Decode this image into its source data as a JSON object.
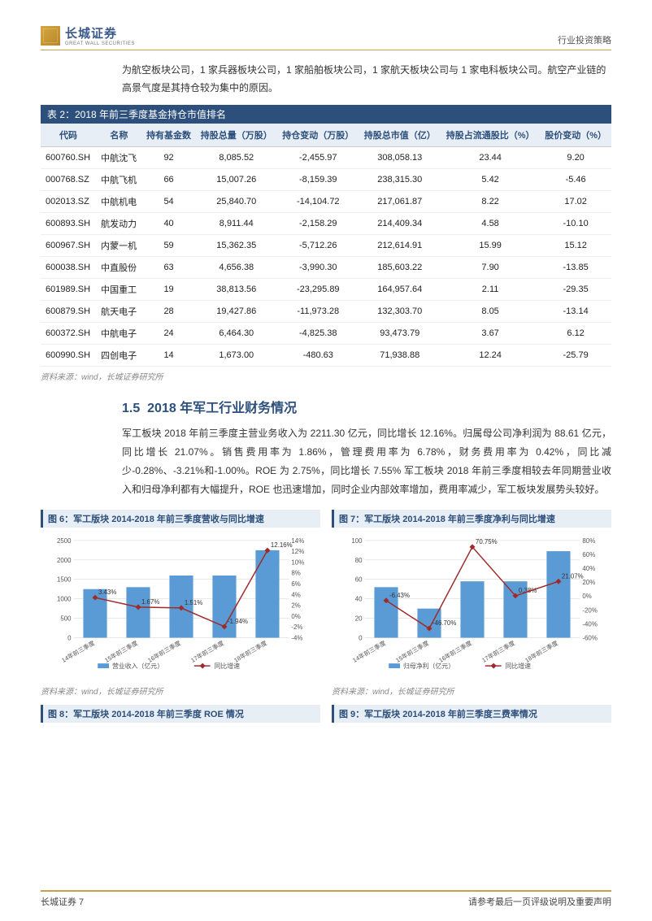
{
  "header": {
    "brand_cn": "长城证券",
    "brand_en": "GREAT WALL SECURITIES",
    "right": "行业投资策略"
  },
  "intro": "为航空板块公司，1 家兵器板块公司，1 家船舶板块公司，1 家航天板块公司与 1 家电科板块公司。航空产业链的高景气度是其持仓较为集中的原因。",
  "table": {
    "title": "表 2：2018 年前三季度基金持仓市值排名",
    "columns": [
      "代码",
      "名称",
      "持有基金数",
      "持股总量（万股）",
      "持仓变动（万股）",
      "持股总市值（亿）",
      "持股占流通股比（%）",
      "股价变动（%）"
    ],
    "rows": [
      [
        "600760.SH",
        "中航沈飞",
        "92",
        "8,085.52",
        "-2,455.97",
        "308,058.13",
        "23.44",
        "9.20"
      ],
      [
        "000768.SZ",
        "中航飞机",
        "66",
        "15,007.26",
        "-8,159.39",
        "238,315.30",
        "5.42",
        "-5.46"
      ],
      [
        "002013.SZ",
        "中航机电",
        "54",
        "25,840.70",
        "-14,104.72",
        "217,061.87",
        "8.22",
        "17.02"
      ],
      [
        "600893.SH",
        "航发动力",
        "40",
        "8,911.44",
        "-2,158.29",
        "214,409.34",
        "4.58",
        "-10.10"
      ],
      [
        "600967.SH",
        "内蒙一机",
        "59",
        "15,362.35",
        "-5,712.26",
        "212,614.91",
        "15.99",
        "15.12"
      ],
      [
        "600038.SH",
        "中直股份",
        "63",
        "4,656.38",
        "-3,990.30",
        "185,603.22",
        "7.90",
        "-13.85"
      ],
      [
        "601989.SH",
        "中国重工",
        "19",
        "38,813.56",
        "-23,295.89",
        "164,957.64",
        "2.11",
        "-29.35"
      ],
      [
        "600879.SH",
        "航天电子",
        "28",
        "19,427.86",
        "-11,973.28",
        "132,303.70",
        "8.05",
        "-13.14"
      ],
      [
        "600372.SH",
        "中航电子",
        "24",
        "6,464.30",
        "-4,825.38",
        "93,473.79",
        "3.67",
        "6.12"
      ],
      [
        "600990.SH",
        "四创电子",
        "14",
        "1,673.00",
        "-480.63",
        "71,938.88",
        "12.24",
        "-25.79"
      ]
    ],
    "source": "资料来源：wind，长城证券研究所"
  },
  "section": {
    "num": "1.5",
    "title": "2018 年军工行业财务情况",
    "para": "军工板块 2018 年前三季度主营业务收入为 2211.30 亿元，同比增长 12.16%。归属母公司净利润为 88.61 亿元，同比增长 21.07%。销售费用率为 1.86%，管理费用率为 6.78%，财务费用率为 0.42%，同比减少-0.28%、-3.21%和-1.00%。ROE 为 2.75%，同比增长 7.55% 军工板块 2018 年前三季度相较去年同期营业收入和归母净利都有大幅提升，ROE 也迅速增加，同时企业内部效率增加，费用率减少，军工板块发展势头较好。"
  },
  "chart6": {
    "title": "图 6：军工版块 2014-2018 年前三季度营收与同比增速",
    "type": "bar-line",
    "categories": [
      "14年前三季度",
      "15年前三季度",
      "16年前三季度",
      "17年前三季度",
      "18年前三季度"
    ],
    "bars": [
      1250,
      1300,
      1600,
      1600,
      2250
    ],
    "line_pct": [
      3.43,
      1.67,
      1.51,
      -1.94,
      12.16
    ],
    "line_labels": [
      "3.43%",
      "1.67%",
      "1.51%",
      "-1.94%",
      "12.16%"
    ],
    "y1_max": 2500,
    "y1_step": 500,
    "y2_min": -4,
    "y2_max": 14,
    "y2_step": 2,
    "bar_color": "#5b9bd5",
    "line_color": "#9e2b2b",
    "grid_color": "#d0d0d0",
    "legend": [
      "营业收入（亿元）",
      "同比增速"
    ],
    "source": "资料来源：wind，长城证券研究所"
  },
  "chart7": {
    "title": "图 7：军工版块 2014-2018 年前三季度净利与同比增速",
    "type": "bar-line",
    "categories": [
      "14年前三季度",
      "15年前三季度",
      "16年前三季度",
      "17年前三季度",
      "18年前三季度"
    ],
    "bars": [
      52,
      30,
      58,
      58,
      89
    ],
    "line_pct": [
      -6.43,
      -46.7,
      70.75,
      0.38,
      21.07
    ],
    "line_labels": [
      "-6.43%",
      "-46.70%",
      "70.75%",
      "0.38%",
      "21.07%"
    ],
    "y1_max": 100,
    "y1_step": 20,
    "y2_min": -60,
    "y2_max": 80,
    "y2_step": 20,
    "bar_color": "#5b9bd5",
    "line_color": "#9e2b2b",
    "grid_color": "#d0d0d0",
    "legend": [
      "归母净利（亿元）",
      "同比增速"
    ],
    "source": "资料来源：wind，长城证券研究所"
  },
  "chart8": {
    "title": "图 8：军工版块 2014-2018 年前三季度 ROE 情况"
  },
  "chart9": {
    "title": "图 9：军工版块 2014-2018 年前三季度三费率情况"
  },
  "footer": {
    "left": "长城证券 7",
    "right": "请参考最后一页评级说明及重要声明"
  }
}
